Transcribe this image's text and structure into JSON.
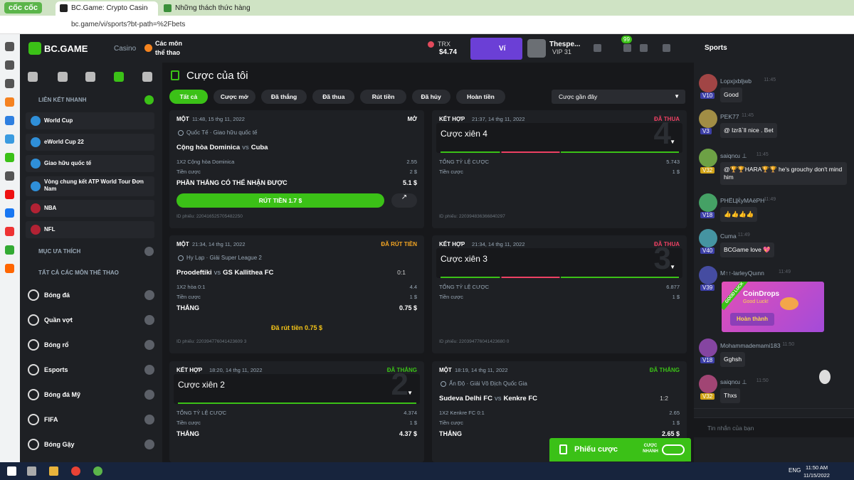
{
  "browser": {
    "brand": "cốc cốc",
    "tabs": [
      "BC.Game: Crypto Casino Gam",
      "Những thách thức hàng ngà"
    ],
    "url": "bc.game/vi/sports?bt-path=%2Fbets"
  },
  "header": {
    "logo": "BC.GAME",
    "casino": "Casino",
    "sports": "Các môn thể thao",
    "currency": "TRX",
    "balance": "$4.74",
    "wallet": "Ví",
    "user": "Thespe...",
    "vip": "VIP 31",
    "badge": "99"
  },
  "sidebar": {
    "quick_links_title": "LIÊN KẾT NHANH",
    "quick_links": [
      "World Cup",
      "eWorld Cup 22",
      "Giao hữu quốc tế",
      "Vòng chung kết ATP World Tour Đơn Nam",
      "NBA",
      "NFL"
    ],
    "favorites": "MỤC ƯA THÍCH",
    "all_sports": "TẤT CẢ CÁC MÔN THỂ THAO",
    "sports": [
      "Bóng đá",
      "Quần vợt",
      "Bóng rổ",
      "Esports",
      "Bóng đá Mỹ",
      "FIFA",
      "Bóng Gậy"
    ]
  },
  "main": {
    "title": "Cược của tôi",
    "filters": [
      "Tất cả",
      "Cược mở",
      "Đã thắng",
      "Đã thua",
      "Rút tiền",
      "Đã hủy",
      "Hoàn tiền"
    ],
    "sort": "Cược gần đây",
    "cards": [
      {
        "type": "MỘT",
        "time": "11:48, 15 thg 11, 2022",
        "status": "MỞ",
        "status_color": "#ffffff",
        "league": "Quốc Tế · Giao hữu quốc tế",
        "home": "Cộng hòa Dominica",
        "vs": "vs",
        "away": "Cuba",
        "rows": [
          [
            "1X2 Cộng hòa Dominica",
            "2.55"
          ],
          [
            "Tiền cược",
            "2 $"
          ]
        ],
        "total": [
          "PHẦN THẮNG CÓ THỂ NHẬN ĐƯỢC",
          "5.1 $"
        ],
        "button": "RÚT TIỀN 1.7 $",
        "id": "ID phiếu: 220416525705482250"
      },
      {
        "type": "KẾT HỢP",
        "time": "21:37, 14 thg 11, 2022",
        "status": "ĐÃ THUA",
        "status_color": "#ed4163",
        "title": "Cược xiên 4",
        "watermark": "4",
        "rows": [
          [
            "TỔNG TỶ LỆ CƯỢC",
            "5.743"
          ],
          [
            "Tiền cược",
            "1 $"
          ]
        ],
        "id": "ID phiếu: 220394836366840297"
      },
      {
        "type": "MỘT",
        "time": "21:34, 14 thg 11, 2022",
        "status": "ĐÃ RÚT TIỀN",
        "status_color": "#f5a623",
        "league": "Hy Lạp · Giải Super League 2",
        "home": "Proodeftiki",
        "vs": "vs",
        "away": "GS Kallithea FC",
        "score": "0:1",
        "rows": [
          [
            "1X2 hòa  0:1",
            "4.4"
          ],
          [
            "Tiền cược",
            "1 $"
          ]
        ],
        "total": [
          "THẮNG",
          "0.75 $"
        ],
        "note": "Đã rút tiền 0.75 $",
        "id": "ID phiếu: 220394776041423609 3"
      },
      {
        "type": "KẾT HỢP",
        "time": "21:34, 14 thg 11, 2022",
        "status": "ĐÃ THUA",
        "status_color": "#ed4163",
        "title": "Cược xiên 3",
        "watermark": "3",
        "rows": [
          [
            "TỔNG TỶ LỆ CƯỢC",
            "6.877"
          ],
          [
            "Tiền cược",
            "1 $"
          ]
        ],
        "id": "ID phiếu: 220394776041423680 0"
      },
      {
        "type": "KẾT HỢP",
        "time": "18:20, 14 thg 11, 2022",
        "status": "ĐÃ THẮNG",
        "status_color": "#3bc117",
        "title": "Cược xiên 2",
        "watermark": "2",
        "rows": [
          [
            "TỔNG TỶ LỆ CƯỢC",
            "4.374"
          ],
          [
            "Tiền cược",
            "1 $"
          ]
        ],
        "total": [
          "THẮNG",
          "4.37 $"
        ]
      },
      {
        "type": "MỘT",
        "time": "18:19, 14 thg 11, 2022",
        "status": "ĐÃ THẮNG",
        "status_color": "#3bc117",
        "league": "Ấn Độ · Giải Vô Địch Quốc Gia",
        "home": "Sudeva Delhi FC",
        "vs": "vs",
        "away": "Kenkre FC",
        "score": "1:2",
        "rows": [
          [
            "1X2 Kenkre FC  0:1",
            "2.65"
          ],
          [
            "Tiền cược",
            "1 $"
          ]
        ],
        "total": [
          "THẮNG",
          "2.65 $"
        ]
      }
    ]
  },
  "chat": {
    "tab": "Sports",
    "messages": [
      {
        "user": "Lopxjxbljwb",
        "time": "11:45",
        "level": "V10",
        "text": "Good"
      },
      {
        "user": "PEK77",
        "time": "11:45",
        "level": "V3",
        "text": "@ Izrã`ll nice . Bet"
      },
      {
        "user": "saiqnoɹ ⊥",
        "time": "11:45",
        "level": "V32",
        "text": "@🏆🏆HARA🏆🏆 he's grouchy don't mind him"
      },
      {
        "user": "PHЁЦЌуМАёРН",
        "time": "11:49",
        "level": "V18",
        "text": "👍👍👍👍"
      },
      {
        "user": "Cuma",
        "time": "11:49",
        "level": "V40",
        "text": "BCGame love 💖"
      },
      {
        "user": "M↑↑-larleyQuınn",
        "time": "11:49",
        "level": "V39"
      },
      {
        "user": "Mohammademami183",
        "time": "11:50",
        "level": "V18",
        "text": "Gghsh"
      },
      {
        "user": "saiqnoɹ ⊥",
        "time": "11:50",
        "level": "V32",
        "text": "Thxs"
      }
    ],
    "coindrop": {
      "ribbon": "GOOD LUCK",
      "title": "CoinDrops",
      "subtitle": "Good Luck!",
      "button": "Hoàn thành"
    },
    "placeholder": "Tin nhắn của bạn"
  },
  "betslip": {
    "label": "Phiếu cược",
    "quick": "CƯỢC NHANH"
  },
  "taskbar": {
    "lang": "ENG",
    "time": "11:50 AM",
    "date": "11/15/2022"
  }
}
